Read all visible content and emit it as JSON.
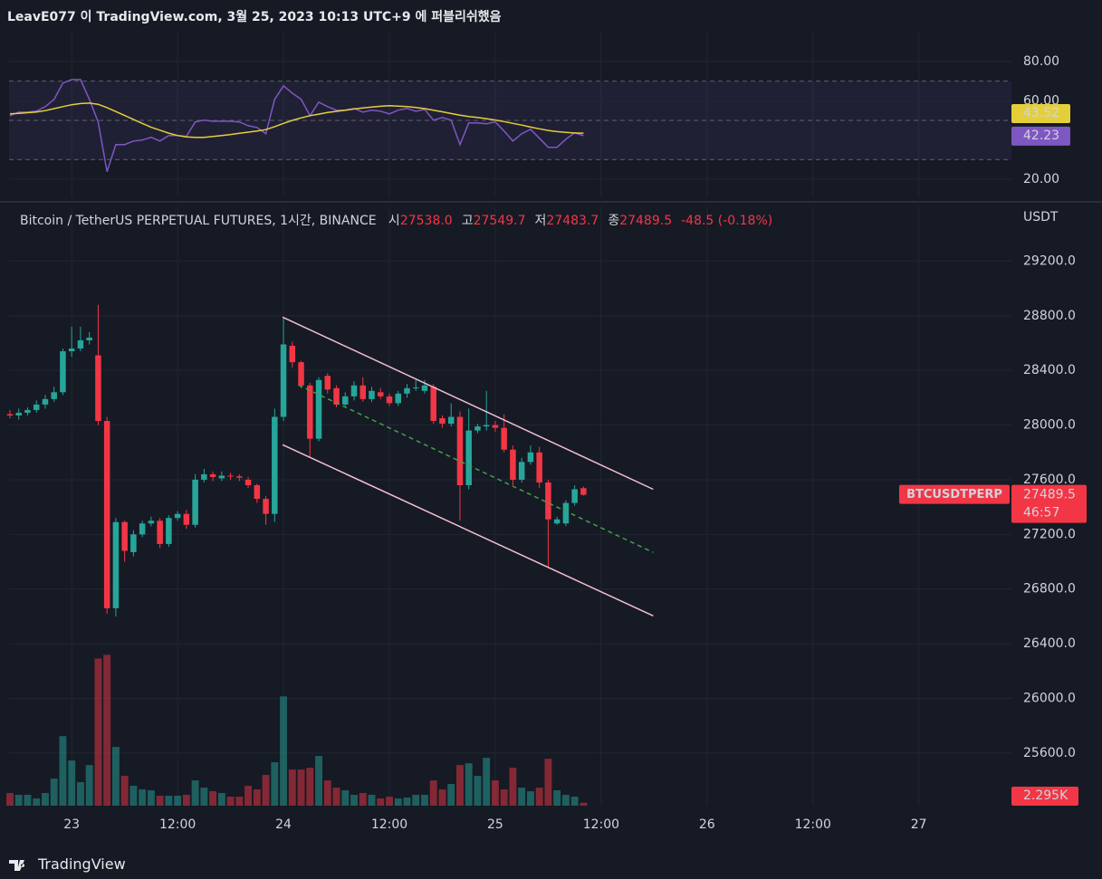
{
  "header": {
    "published": "LeavE077 이 TradingView.com, 3월 25, 2023 10:13 UTC+9 에 퍼블리쉬했음",
    "footer": "TradingView"
  },
  "chart_data": {
    "type": "candlestick",
    "title": "Bitcoin / TetherUS PERPETUAL FUTURES, 1시간, BINANCE",
    "ohlc_legend": [
      {
        "label": "시",
        "value": "27538.0"
      },
      {
        "label": "고",
        "value": "27549.7"
      },
      {
        "label": "저",
        "value": "27483.7"
      },
      {
        "label": "종",
        "value": "27489.5"
      }
    ],
    "change": "-48.5 (-0.18%)",
    "currency": "USDT",
    "symbol": "BTCUSDTPERP",
    "countdown": "46:57",
    "up_color": "#26a69a",
    "down_color": "#f23645",
    "xlim": [
      -7.1,
      106.5
    ],
    "xticks": [
      {
        "value": 0,
        "label": "23"
      },
      {
        "value": 12,
        "label": "12:00"
      },
      {
        "value": 24,
        "label": "24"
      },
      {
        "value": 36,
        "label": "12:00"
      },
      {
        "value": 48,
        "label": "25"
      },
      {
        "value": 60,
        "label": "12:00"
      },
      {
        "value": 72,
        "label": "26"
      },
      {
        "value": 84,
        "label": "12:00"
      },
      {
        "value": 96,
        "label": "27"
      }
    ],
    "ylim": [
      25215,
      29600
    ],
    "yticks": [
      {
        "value": 25600,
        "label": "25600.0"
      },
      {
        "value": 26000,
        "label": "26000.0"
      },
      {
        "value": 26400,
        "label": "26400.0"
      },
      {
        "value": 26800,
        "label": "26800.0"
      },
      {
        "value": 27200,
        "label": "27200.0"
      },
      {
        "value": 27600,
        "label": "27600.0"
      },
      {
        "value": 28000,
        "label": "28000.0"
      },
      {
        "value": 28400,
        "label": "28400.0"
      },
      {
        "value": 28800,
        "label": "28800.0"
      },
      {
        "value": 29200,
        "label": "29200.0"
      }
    ],
    "grid": true,
    "candles": {
      "x": [
        -7,
        -6,
        -5,
        -4,
        -3,
        -2,
        -1,
        0,
        1,
        2,
        3,
        4,
        5,
        6,
        7,
        8,
        9,
        10,
        11,
        12,
        13,
        14,
        15,
        16,
        17,
        18,
        19,
        20,
        21,
        22,
        23,
        24,
        25,
        26,
        27,
        28,
        29,
        30,
        31,
        32,
        33,
        34,
        35,
        36,
        37,
        38,
        39,
        40,
        41,
        42,
        43,
        44,
        45,
        46,
        47,
        48,
        49,
        50,
        51,
        52,
        53,
        54,
        55,
        56,
        57,
        58
      ],
      "open": [
        28080,
        28070,
        28090,
        28110,
        28150,
        28190,
        28240,
        28540,
        28560,
        28620,
        28510,
        28030,
        26660,
        27290,
        27070,
        27200,
        27280,
        27300,
        27130,
        27320,
        27350,
        27270,
        27600,
        27640,
        27610,
        27630,
        27625,
        27600,
        27560,
        27460,
        27350,
        28060,
        28580,
        28460,
        28290,
        27900,
        28360,
        28270,
        28150,
        28210,
        28290,
        28190,
        28240,
        28210,
        28160,
        28230,
        28270,
        28250,
        28280,
        28050,
        28010,
        28060,
        27560,
        27960,
        27990,
        28000,
        27980,
        27820,
        27600,
        27730,
        27800,
        27580,
        27280,
        27280,
        27430,
        27538
      ],
      "high": [
        28110,
        28120,
        28130,
        28180,
        28220,
        28280,
        28560,
        28720,
        28720,
        28680,
        28880,
        28060,
        27320,
        27300,
        27230,
        27300,
        27330,
        27320,
        27340,
        27370,
        27380,
        27640,
        27680,
        27660,
        27660,
        27650,
        27640,
        27620,
        27570,
        27480,
        28120,
        28790,
        28610,
        28470,
        28310,
        28350,
        28380,
        28290,
        28240,
        28320,
        28350,
        28280,
        28270,
        28230,
        28250,
        28300,
        28330,
        28330,
        28300,
        28070,
        28160,
        28100,
        28120,
        28010,
        28250,
        28030,
        28080,
        27850,
        27760,
        27850,
        27840,
        27600,
        27330,
        27450,
        27560,
        27549.7
      ],
      "low": [
        28050,
        28040,
        28070,
        28090,
        28120,
        28170,
        28220,
        28500,
        28540,
        28590,
        28000,
        26620,
        26600,
        27000,
        27040,
        27180,
        27260,
        27100,
        27110,
        27300,
        27240,
        27250,
        27580,
        27590,
        27590,
        27600,
        27590,
        27540,
        27430,
        27270,
        27290,
        28030,
        28420,
        28270,
        27760,
        27880,
        28230,
        28130,
        28140,
        28180,
        28170,
        28170,
        28190,
        28140,
        28140,
        28200,
        28250,
        28230,
        28010,
        27980,
        27990,
        27300,
        27530,
        27940,
        27960,
        27950,
        27800,
        27560,
        27580,
        27710,
        27540,
        26960,
        27270,
        27260,
        27410,
        27483.7
      ],
      "close": [
        28070,
        28090,
        28110,
        28150,
        28190,
        28240,
        28540,
        28560,
        28620,
        28640,
        28030,
        26660,
        27290,
        27080,
        27200,
        27280,
        27300,
        27130,
        27320,
        27350,
        27270,
        27600,
        27640,
        27620,
        27630,
        27625,
        27615,
        27560,
        27460,
        27350,
        28060,
        28590,
        28460,
        28290,
        27900,
        28330,
        28260,
        28150,
        28210,
        28290,
        28190,
        28250,
        28210,
        28160,
        28230,
        28270,
        28275,
        28290,
        28030,
        28010,
        28060,
        27560,
        27960,
        27990,
        28000,
        27980,
        27820,
        27600,
        27730,
        27800,
        27580,
        27310,
        27310,
        27430,
        27530,
        27489.5
      ],
      "volume": [
        9800,
        8400,
        8400,
        5600,
        9800,
        21000,
        53900,
        35000,
        18200,
        31500,
        114100,
        116900,
        45500,
        23100,
        15400,
        12600,
        11900,
        7700,
        7700,
        7700,
        8400,
        19600,
        14000,
        11200,
        9800,
        7000,
        7000,
        15400,
        12600,
        23800,
        33600,
        84700,
        28000,
        28000,
        29400,
        38500,
        19600,
        14000,
        11900,
        8400,
        9800,
        8400,
        5600,
        7000,
        5600,
        6300,
        8400,
        8400,
        19600,
        12600,
        16800,
        31500,
        32900,
        23100,
        37100,
        19600,
        12600,
        29400,
        14000,
        11200,
        14000,
        36400,
        11900,
        8400,
        7000,
        2295
      ]
    },
    "volume_ylim": [
      0,
      160000
    ],
    "volume_label": "2.295K",
    "drawings": [
      {
        "x": [
          23.9,
          65.9
        ],
        "y": [
          28790,
          27530
        ],
        "color": "#f3bfd2",
        "dashed": false
      },
      {
        "x": [
          23.9,
          65.9
        ],
        "y": [
          27856,
          26604
        ],
        "color": "#f3bfd2",
        "dashed": false
      },
      {
        "x": [
          25.7,
          65.9
        ],
        "y": [
          28293,
          27068
        ],
        "color": "#43a047",
        "dashed": true
      }
    ],
    "rsi": {
      "ylim": [
        10.8,
        95.2
      ],
      "yticks": [
        {
          "value": 20,
          "label": "20.00"
        },
        {
          "value": 60,
          "label": "60.00"
        },
        {
          "value": 80,
          "label": "80.00"
        }
      ],
      "bands": [
        70,
        50,
        30
      ],
      "band_fill": "#7e57c2",
      "color": "#7e57c2",
      "ma_color": "#e4cf3a",
      "values": [
        52.4,
        54.2,
        54.2,
        54.7,
        57,
        60.7,
        69,
        70.8,
        70.8,
        60.7,
        49.2,
        23.9,
        37.7,
        37.7,
        39.5,
        40,
        41.4,
        39.5,
        42.3,
        42.3,
        41.9,
        49.2,
        50.1,
        49.6,
        49.6,
        49.6,
        49.2,
        47.3,
        46.4,
        43.2,
        60.7,
        67.6,
        63.9,
        60.7,
        52.4,
        59.3,
        57,
        55.2,
        55.2,
        56.1,
        54.2,
        55.2,
        54.7,
        53.3,
        55.2,
        56.1,
        54.7,
        55.6,
        50.1,
        51.5,
        50.1,
        37.7,
        48.7,
        48.7,
        48.3,
        49.2,
        44.6,
        39.5,
        43.2,
        45.5,
        40.9,
        36.3,
        36.3,
        40.4,
        43.7,
        42.23
      ],
      "ma": [
        53.3,
        53.6,
        53.9,
        54.3,
        55,
        56,
        57,
        58,
        58.6,
        58.8,
        58.2,
        56.5,
        54.5,
        52.5,
        50.5,
        48.5,
        46.5,
        45,
        43.5,
        42.3,
        41.6,
        41.4,
        41.4,
        41.8,
        42.3,
        42.8,
        43.4,
        44,
        44.6,
        45.3,
        46.8,
        48.5,
        50,
        51.3,
        52.4,
        53.2,
        54,
        54.6,
        55.2,
        55.8,
        56.3,
        56.8,
        57.2,
        57.5,
        57.3,
        57,
        56.6,
        56,
        55.2,
        54.4,
        53.5,
        52.7,
        52,
        51.5,
        50.9,
        50.2,
        49.4,
        48.5,
        47.6,
        46.6,
        45.7,
        44.9,
        44.3,
        43.9,
        43.6,
        43.52
      ]
    }
  }
}
